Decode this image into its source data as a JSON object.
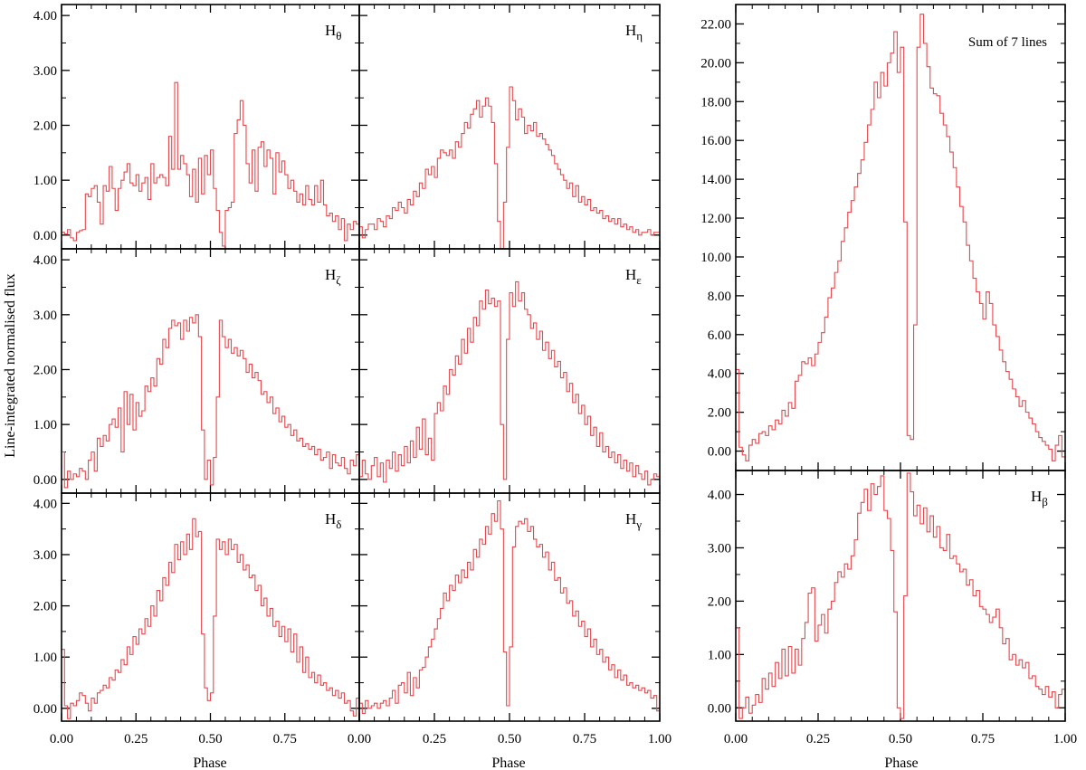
{
  "figure": {
    "ylabel": "Line-integrated normalised flux",
    "xlabel": "Phase",
    "line_color": "#e8474c"
  },
  "chart_data": [
    {
      "id": "h-theta",
      "type": "line",
      "step": true,
      "label_main": "H",
      "label_sub": "θ",
      "xlim": [
        0,
        1
      ],
      "ylim": [
        -0.25,
        4.2
      ],
      "xticks": [
        "0.00",
        "0.25",
        "0.50",
        "0.75",
        "1.00"
      ],
      "yticks": [
        "0.00",
        "1.00",
        "2.00",
        "3.00",
        "4.00"
      ],
      "series": [
        {
          "values": [
            0.05,
            0.02,
            0.1,
            -0.05,
            -0.1,
            0.05,
            0.08,
            0.1,
            0.75,
            0.7,
            0.85,
            0.9,
            0.6,
            0.2,
            0.9,
            0.8,
            1.25,
            0.85,
            0.45,
            0.85,
            1.0,
            1.15,
            1.3,
            0.95,
            0.9,
            1.1,
            0.8,
            0.95,
            1.05,
            0.65,
            1.3,
            0.95,
            1.05,
            1.1,
            1.05,
            0.9,
            1.8,
            1.2,
            2.78,
            1.2,
            1.45,
            1.3,
            1.1,
            0.7,
            1.2,
            0.6,
            1.4,
            0.75,
            1.45,
            1.1,
            1.55,
            0.85,
            0.45,
            0.05,
            -0.2,
            0.45,
            0.5,
            0.6,
            1.85,
            2.1,
            2.45,
            2.0,
            1.3,
            0.95,
            1.55,
            0.8,
            1.6,
            1.7,
            1.25,
            1.55,
            1.4,
            0.75,
            1.5,
            1.15,
            1.35,
            1.1,
            0.85,
            1.0,
            0.8,
            0.6,
            0.75,
            0.55,
            0.9,
            0.65,
            0.55,
            0.9,
            0.6,
            1.0,
            0.55,
            0.35,
            0.4,
            0.25,
            0.35,
            0.1,
            0.3,
            -0.1,
            0.2,
            0.1,
            0.25,
            0.2
          ]
        }
      ]
    },
    {
      "id": "h-eta",
      "type": "line",
      "step": true,
      "label_main": "H",
      "label_sub": "η",
      "xlim": [
        0,
        1
      ],
      "ylim": [
        -0.25,
        4.2
      ],
      "xticks": [
        "0.00",
        "0.25",
        "0.50",
        "0.75",
        "1.00"
      ],
      "yticks": [
        "0.00",
        "1.00",
        "2.00",
        "3.00",
        "4.00"
      ],
      "series": [
        {
          "values": [
            0.15,
            -0.05,
            0.1,
            0.2,
            0.2,
            0.1,
            0.3,
            0.25,
            0.15,
            0.35,
            0.3,
            0.5,
            0.45,
            0.6,
            0.5,
            0.4,
            0.65,
            0.55,
            0.8,
            0.7,
            0.95,
            0.85,
            1.2,
            1.1,
            1.25,
            1.05,
            1.4,
            1.55,
            1.5,
            1.45,
            1.55,
            1.4,
            1.7,
            1.6,
            1.85,
            2.05,
            1.95,
            2.2,
            2.3,
            2.45,
            2.15,
            2.35,
            2.5,
            2.35,
            2.05,
            1.3,
            0.25,
            -0.25,
            0.6,
            1.6,
            2.7,
            2.45,
            2.1,
            2.3,
            2.15,
            1.85,
            2.0,
            1.9,
            2.05,
            1.8,
            1.85,
            1.75,
            1.65,
            1.55,
            1.45,
            1.3,
            1.2,
            1.1,
            1.0,
            0.85,
            0.95,
            0.7,
            0.9,
            0.6,
            0.7,
            0.55,
            0.65,
            0.45,
            0.5,
            0.4,
            0.45,
            0.3,
            0.35,
            0.25,
            0.3,
            0.2,
            0.3,
            0.15,
            0.2,
            0.1,
            0.15,
            0.05,
            0.1,
            0.0,
            0.05,
            0.05,
            0.1,
            0.0,
            0.05,
            0.05
          ]
        }
      ]
    },
    {
      "id": "h-zeta",
      "type": "line",
      "step": true,
      "label_main": "H",
      "label_sub": "ζ",
      "xlim": [
        0,
        1
      ],
      "ylim": [
        -0.25,
        4.2
      ],
      "xticks": [
        "0.00",
        "0.25",
        "0.50",
        "0.75",
        "1.00"
      ],
      "yticks": [
        "0.00",
        "1.00",
        "2.00",
        "3.00",
        "4.00"
      ],
      "series": [
        {
          "values": [
            0.5,
            -0.15,
            0.15,
            0.0,
            0.1,
            0.05,
            0.2,
            0.15,
            0.0,
            0.35,
            0.5,
            0.15,
            0.75,
            0.6,
            0.8,
            0.7,
            1.0,
            1.1,
            0.95,
            1.3,
            0.5,
            1.6,
            1.0,
            1.55,
            0.9,
            1.4,
            1.15,
            1.25,
            1.7,
            1.6,
            1.85,
            1.7,
            2.2,
            2.1,
            2.55,
            2.4,
            2.75,
            2.9,
            2.8,
            2.85,
            2.55,
            2.9,
            2.7,
            2.95,
            2.85,
            3.0,
            2.6,
            0.9,
            0.0,
            0.35,
            -0.1,
            0.4,
            1.5,
            2.9,
            2.6,
            2.4,
            2.55,
            2.3,
            2.4,
            2.25,
            2.35,
            2.2,
            1.95,
            2.1,
            1.85,
            1.95,
            1.8,
            1.55,
            1.6,
            1.4,
            1.5,
            1.2,
            1.3,
            1.05,
            1.15,
            0.95,
            1.0,
            0.8,
            0.9,
            0.7,
            0.75,
            0.6,
            0.65,
            0.55,
            0.6,
            0.45,
            0.55,
            0.35,
            0.4,
            0.5,
            0.2,
            0.45,
            0.3,
            0.25,
            0.4,
            0.2,
            0.1,
            0.35,
            0.25,
            0.45
          ]
        }
      ]
    },
    {
      "id": "h-epsilon",
      "type": "line",
      "step": true,
      "label_main": "H",
      "label_sub": "ε",
      "xlim": [
        0,
        1
      ],
      "ylim": [
        -0.25,
        4.2
      ],
      "xticks": [
        "0.00",
        "0.25",
        "0.50",
        "0.75",
        "1.00"
      ],
      "yticks": [
        "0.00",
        "1.00",
        "2.00",
        "3.00",
        "4.00"
      ],
      "series": [
        {
          "values": [
            0.05,
            0.35,
            0.1,
            0.0,
            0.25,
            0.4,
            0.05,
            0.3,
            -0.05,
            0.35,
            0.2,
            0.5,
            0.15,
            0.45,
            0.25,
            0.6,
            0.3,
            0.7,
            0.4,
            0.95,
            0.55,
            1.1,
            0.45,
            0.75,
            0.35,
            1.2,
            1.4,
            1.25,
            1.7,
            1.55,
            2.0,
            1.9,
            2.25,
            2.1,
            2.55,
            2.3,
            2.75,
            2.5,
            2.95,
            2.8,
            3.25,
            3.1,
            3.45,
            3.2,
            3.3,
            3.15,
            3.25,
            1.0,
            0.0,
            2.55,
            3.4,
            3.15,
            3.6,
            3.25,
            3.4,
            3.1,
            3.0,
            2.75,
            2.85,
            2.55,
            2.7,
            2.35,
            2.5,
            2.2,
            2.35,
            2.05,
            2.15,
            1.85,
            1.95,
            1.6,
            1.75,
            1.4,
            1.55,
            1.2,
            1.35,
            1.0,
            1.15,
            0.8,
            0.95,
            0.6,
            0.85,
            0.5,
            0.6,
            0.4,
            0.5,
            0.3,
            0.45,
            0.2,
            0.35,
            0.15,
            0.3,
            0.05,
            0.25,
            0.1,
            0.0,
            0.15,
            -0.1,
            0.0,
            0.1,
            0.05
          ]
        }
      ]
    },
    {
      "id": "h-delta",
      "type": "line",
      "step": true,
      "label_main": "H",
      "label_sub": "δ",
      "xlim": [
        0,
        1
      ],
      "ylim": [
        -0.25,
        4.2
      ],
      "xticks": [
        "0.00",
        "0.25",
        "0.50",
        "0.75",
        "1.00"
      ],
      "yticks": [
        "0.00",
        "1.00",
        "2.00",
        "3.00",
        "4.00"
      ],
      "series": [
        {
          "values": [
            1.15,
            0.05,
            -0.2,
            0.1,
            0.05,
            0.15,
            0.3,
            0.25,
            0.1,
            -0.05,
            0.2,
            0.1,
            0.3,
            0.35,
            0.45,
            0.4,
            0.6,
            0.55,
            0.75,
            0.7,
            0.95,
            0.85,
            1.2,
            1.05,
            1.4,
            1.25,
            1.55,
            1.45,
            1.75,
            1.6,
            2.0,
            1.8,
            2.3,
            2.1,
            2.55,
            2.4,
            2.85,
            2.65,
            3.2,
            2.9,
            3.25,
            3.0,
            3.4,
            3.1,
            3.7,
            3.35,
            3.45,
            1.45,
            0.4,
            0.15,
            0.3,
            1.8,
            3.3,
            3.1,
            3.25,
            3.0,
            3.3,
            3.1,
            3.2,
            2.85,
            3.0,
            2.7,
            2.8,
            2.55,
            2.6,
            2.3,
            2.4,
            2.0,
            2.15,
            1.8,
            1.95,
            1.6,
            1.7,
            1.4,
            1.6,
            1.3,
            1.55,
            1.1,
            1.45,
            0.9,
            1.2,
            0.7,
            1.0,
            0.6,
            0.7,
            0.5,
            0.65,
            0.45,
            0.5,
            0.35,
            0.4,
            0.25,
            0.35,
            0.2,
            0.3,
            0.1,
            0.15,
            -0.05,
            -0.15,
            0.2
          ]
        }
      ]
    },
    {
      "id": "h-gamma",
      "type": "line",
      "step": true,
      "label_main": "H",
      "label_sub": "γ",
      "xlim": [
        0,
        1
      ],
      "ylim": [
        -0.25,
        4.2
      ],
      "xticks": [
        "0.00",
        "0.25",
        "0.50",
        "0.75",
        "1.00"
      ],
      "yticks": [
        "0.00",
        "1.00",
        "2.00",
        "3.00",
        "4.00"
      ],
      "series": [
        {
          "values": [
            0.1,
            -0.1,
            0.15,
            0.0,
            0.05,
            0.1,
            0.0,
            0.1,
            0.15,
            0.05,
            0.2,
            0.35,
            0.1,
            0.45,
            0.5,
            0.3,
            0.7,
            0.25,
            0.6,
            0.4,
            0.75,
            0.8,
            1.0,
            1.2,
            1.35,
            1.55,
            1.75,
            1.95,
            2.25,
            2.1,
            2.4,
            2.3,
            2.6,
            2.45,
            2.7,
            2.55,
            2.85,
            2.7,
            3.1,
            2.95,
            3.3,
            3.2,
            3.55,
            3.4,
            3.8,
            3.65,
            4.05,
            3.5,
            1.1,
            0.05,
            1.2,
            3.15,
            3.55,
            3.65,
            3.6,
            3.7,
            3.45,
            3.55,
            3.3,
            3.15,
            3.2,
            2.95,
            3.05,
            2.7,
            2.85,
            2.5,
            2.55,
            2.25,
            2.35,
            2.05,
            2.1,
            1.8,
            1.9,
            1.6,
            1.7,
            1.4,
            1.55,
            1.2,
            1.35,
            1.05,
            1.15,
            0.9,
            1.0,
            0.75,
            0.85,
            0.6,
            0.75,
            0.55,
            0.65,
            0.45,
            0.5,
            0.4,
            0.45,
            0.35,
            0.4,
            0.3,
            0.35,
            0.2,
            0.25,
            -0.05
          ]
        }
      ]
    },
    {
      "id": "sum-of-7",
      "type": "line",
      "step": true,
      "label_text": "Sum of 7 lines",
      "xlim": [
        0,
        1
      ],
      "ylim": [
        -1.0,
        23.0
      ],
      "xticks": [],
      "yticks": [
        "0.00",
        "2.00",
        "4.00",
        "6.00",
        "8.00",
        "10.00",
        "12.00",
        "14.00",
        "16.00",
        "18.00",
        "20.00",
        "22.00"
      ],
      "series": [
        {
          "values": [
            4.2,
            0.2,
            -0.2,
            -0.5,
            0.3,
            0.6,
            0.4,
            0.9,
            1.0,
            0.8,
            1.3,
            1.1,
            1.6,
            1.4,
            2.1,
            1.8,
            2.5,
            2.2,
            3.6,
            3.9,
            4.6,
            4.5,
            4.8,
            4.4,
            5.0,
            5.6,
            6.1,
            6.9,
            7.9,
            8.4,
            9.2,
            9.8,
            10.8,
            11.5,
            12.3,
            12.9,
            13.6,
            14.3,
            15.0,
            15.9,
            16.8,
            17.6,
            19.0,
            18.2,
            19.5,
            18.8,
            20.0,
            20.5,
            21.6,
            19.5,
            20.8,
            11.8,
            0.8,
            0.6,
            6.5,
            20.8,
            22.5,
            21.0,
            19.8,
            18.7,
            18.4,
            18.3,
            17.4,
            16.8,
            16.2,
            15.4,
            14.6,
            13.6,
            12.6,
            11.8,
            10.6,
            9.8,
            8.9,
            8.2,
            7.6,
            6.8,
            8.2,
            7.6,
            6.5,
            5.9,
            5.2,
            4.6,
            4.1,
            3.7,
            3.2,
            2.8,
            2.3,
            2.6,
            2.0,
            1.7,
            1.4,
            1.0,
            0.7,
            0.5,
            0.3,
            0.1,
            -0.5,
            0.3,
            0.8,
            -0.3
          ]
        }
      ]
    },
    {
      "id": "h-beta",
      "type": "line",
      "step": true,
      "label_main": "H",
      "label_sub": "β",
      "xlim": [
        0,
        1
      ],
      "ylim": [
        -0.25,
        4.45
      ],
      "xticks": [
        "0.00",
        "0.25",
        "0.50",
        "0.75",
        "1.00"
      ],
      "yticks": [
        "0.00",
        "1.00",
        "2.00",
        "3.00",
        "4.00"
      ],
      "series": [
        {
          "values": [
            1.5,
            -0.2,
            0.0,
            0.2,
            -0.1,
            0.05,
            0.25,
            0.1,
            0.55,
            0.35,
            0.65,
            0.4,
            0.85,
            0.55,
            1.1,
            0.6,
            1.15,
            0.65,
            1.1,
            0.8,
            1.3,
            1.6,
            2.15,
            2.25,
            1.25,
            1.55,
            1.75,
            1.4,
            1.85,
            2.0,
            2.35,
            2.55,
            2.45,
            2.7,
            2.6,
            2.85,
            3.15,
            3.65,
            3.85,
            4.1,
            3.7,
            4.2,
            4.0,
            4.15,
            4.35,
            3.7,
            3.55,
            2.95,
            1.8,
            0.0,
            -0.2,
            2.1,
            4.4,
            4.05,
            3.6,
            3.8,
            3.45,
            3.75,
            3.3,
            3.6,
            3.2,
            3.4,
            3.0,
            2.95,
            3.25,
            2.8,
            2.85,
            2.7,
            2.55,
            2.6,
            2.3,
            2.4,
            2.1,
            2.2,
            1.9,
            1.85,
            1.75,
            1.6,
            1.7,
            1.85,
            1.5,
            1.2,
            1.3,
            0.9,
            1.0,
            0.8,
            0.9,
            0.75,
            0.85,
            0.55,
            0.6,
            0.4,
            0.35,
            0.25,
            0.4,
            0.2,
            0.3,
            0.0,
            0.25,
            0.35
          ]
        }
      ]
    }
  ]
}
